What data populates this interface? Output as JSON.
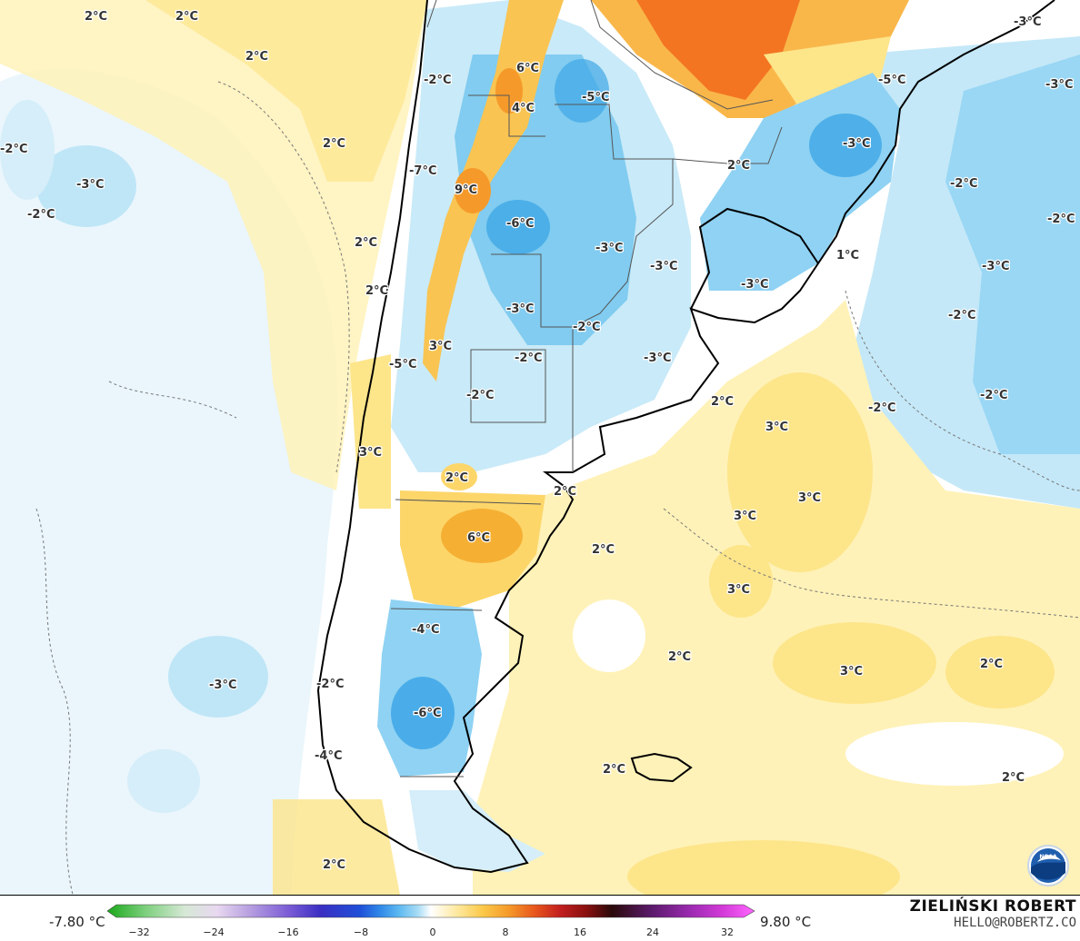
{
  "colors": {
    "land_neutral": "#ffffff",
    "ocean_cool": "#e6f4fb",
    "warm_light": "#fff0b0",
    "warm": "#fcd76a",
    "warm_strong": "#f5a623",
    "hot": "#f26a1b",
    "cool_light": "#bfe6f7",
    "cool": "#7ecbf0",
    "cool_strong": "#3ea7e6",
    "coastline": "#000000"
  },
  "map_labels": [
    "2°C",
    "2°C",
    "2°C",
    "2°C",
    "-2°C",
    "-3°C",
    "-2°C",
    "2°C",
    "2°C",
    "-2°C",
    "6°C",
    "4°C",
    "-5°C",
    "-3°C",
    "-5°C",
    "-3°C",
    "2°C",
    "-7°C",
    "9°C",
    "-6°C",
    "-3°C",
    "-2°C",
    "-3°C",
    "-2°C",
    "1°C",
    "-3°C",
    "-3°C",
    "-3°C",
    "-3°C",
    "-2°C",
    "-2°C",
    "-3°C",
    "-5°C",
    "3°C",
    "-2°C",
    "-2°C",
    "2°C",
    "3°C",
    "-2°C",
    "-2°C",
    "3°C",
    "2°C",
    "2°C",
    "3°C",
    "6°C",
    "3°C",
    "2°C",
    "3°C",
    "-4°C",
    "-3°C",
    "2°C",
    "3°C",
    "2°C",
    "-2°C",
    "-6°C",
    "-4°C",
    "2°C",
    "2°C",
    "2°C"
  ],
  "legend": {
    "min_label": "-7.80 °C",
    "max_label": "9.80 °C",
    "ticks": [
      "−32",
      "−24",
      "−16",
      "−8",
      "0",
      "8",
      "16",
      "24",
      "32"
    ],
    "stops": [
      "#1aa81a",
      "#7fd07f",
      "#d6e8d6",
      "#e8d8f0",
      "#b79fe0",
      "#7b5cd6",
      "#3a2fc2",
      "#1f4fd8",
      "#2f86e8",
      "#5cb8f0",
      "#a8dcf5",
      "#ffffff",
      "#ffe9a0",
      "#fbc94a",
      "#f59a2a",
      "#e8561c",
      "#c21f1f",
      "#8a1010",
      "#2a0a0a",
      "#5a1a6a",
      "#9a2ab0",
      "#d23ad8",
      "#ff66ff"
    ]
  },
  "credits": {
    "author": "ZIELIŃSKI ROBERT",
    "email": "HELLO@ROBERTZ.CO",
    "agency_logo": "NOAA"
  }
}
